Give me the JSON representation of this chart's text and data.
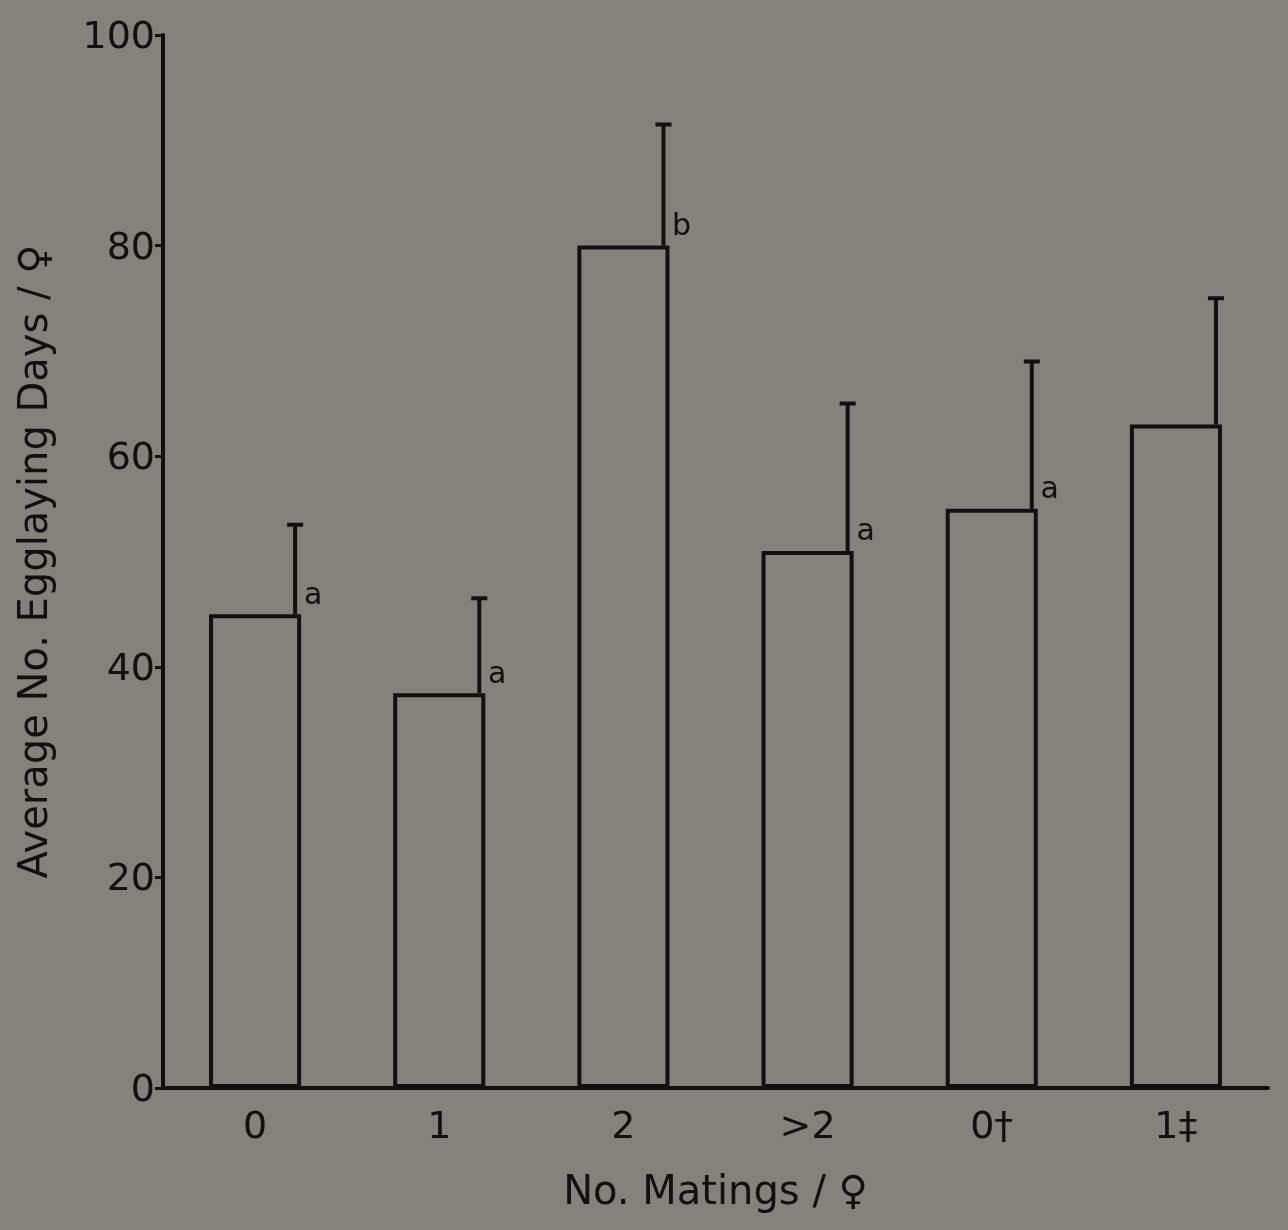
{
  "chart_data": {
    "type": "bar",
    "xlabel": "No. Matings / ♀",
    "ylabel": "Average No. Egglaying Days / ♀",
    "categories": [
      "0",
      "1",
      "2",
      ">2",
      "0†",
      "1‡"
    ],
    "values": [
      45,
      37.5,
      80,
      51,
      55,
      63
    ],
    "errors": [
      [
        45,
        53.5
      ],
      [
        37.5,
        46.5
      ],
      [
        80,
        91.5
      ],
      [
        51,
        65
      ],
      [
        55,
        69
      ],
      [
        63,
        75
      ]
    ],
    "color": "#111111",
    "ylim": [
      0,
      100
    ],
    "yticks": [
      0,
      20,
      40,
      60,
      80,
      100
    ],
    "grid": false,
    "annotations": [
      {
        "text": "a",
        "x": "0",
        "y": 45
      },
      {
        "text": "a",
        "x": "1",
        "y": 37.5
      },
      {
        "text": "b",
        "x": "2",
        "y": 80
      },
      {
        "text": "a",
        "x": ">2",
        "y": 51
      },
      {
        "text": "a",
        "x": "0†",
        "y": 55
      }
    ]
  }
}
